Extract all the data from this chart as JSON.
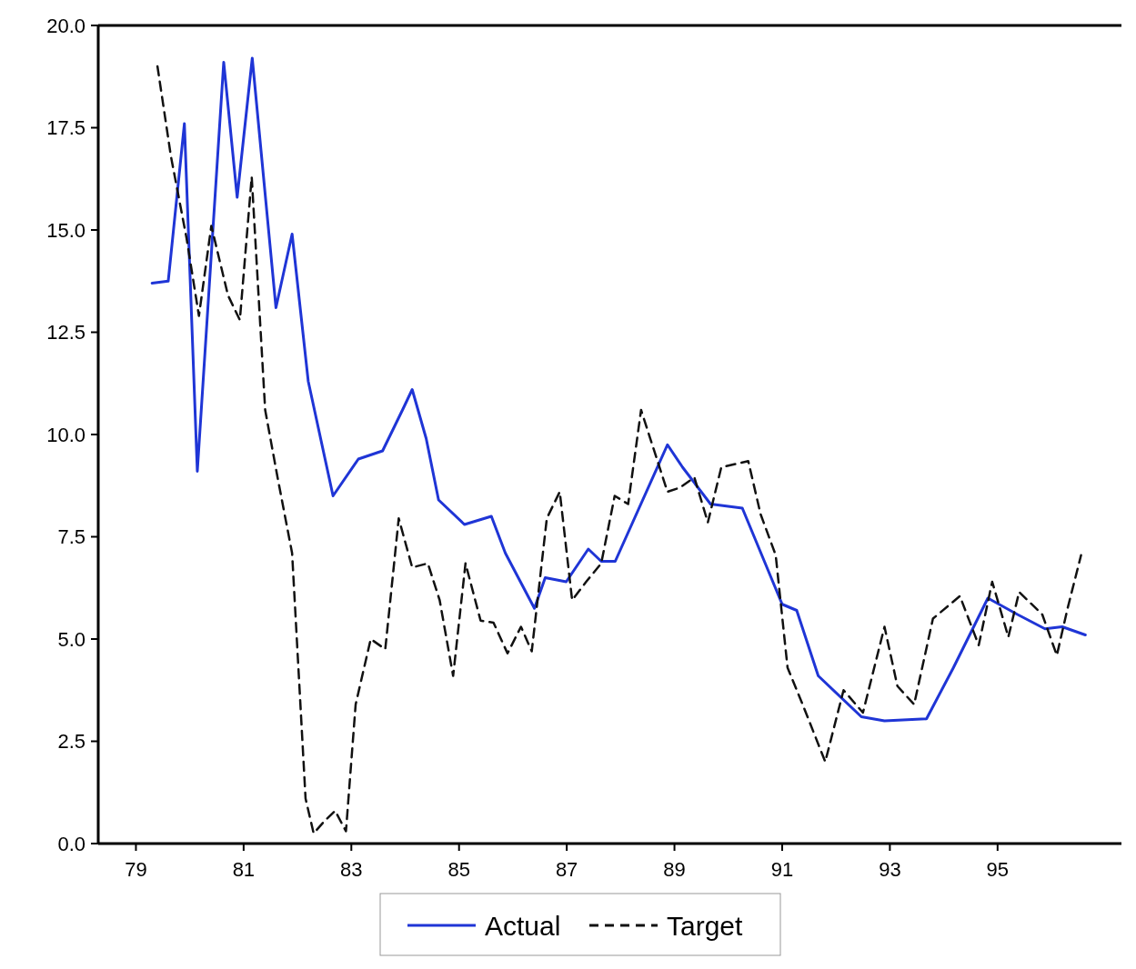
{
  "chart_data": {
    "type": "line",
    "xlim": [
      78.3,
      97.3
    ],
    "xticks": [
      79,
      81,
      83,
      85,
      87,
      89,
      91,
      93,
      95
    ],
    "ylim": [
      0,
      20
    ],
    "yticks": [
      {
        "value": 0,
        "label": "0.0"
      },
      {
        "value": 2.5,
        "label": "2.5"
      },
      {
        "value": 5,
        "label": "5.0"
      },
      {
        "value": 7.5,
        "label": "7.5"
      },
      {
        "value": 10,
        "label": "10.0"
      },
      {
        "value": 12.5,
        "label": "12.5"
      },
      {
        "value": 15,
        "label": "15.0"
      },
      {
        "value": 17.5,
        "label": "17.5"
      },
      {
        "value": 20,
        "label": "20.0"
      }
    ],
    "grid": false,
    "legend": "bottom",
    "marker": "none",
    "series": [
      {
        "name": "Actual",
        "color": "#1f35d6",
        "line_style": "solid",
        "x": [
          79.3,
          79.6,
          79.9,
          80.14,
          80.63,
          80.88,
          81.16,
          81.6,
          81.9,
          82.2,
          82.66,
          83.13,
          83.58,
          83.95,
          84.13,
          84.39,
          84.62,
          85.1,
          85.6,
          85.86,
          86.4,
          86.6,
          86.99,
          87.4,
          87.64,
          87.9,
          88.87,
          89.15,
          89.67,
          90.26,
          91.0,
          91.27,
          91.67,
          92.47,
          92.9,
          93.68,
          94.18,
          94.82,
          95.37,
          95.88,
          96.2,
          96.63
        ],
        "values": [
          13.7,
          13.75,
          17.6,
          9.1,
          19.1,
          15.8,
          19.2,
          13.1,
          14.9,
          11.3,
          8.5,
          9.4,
          9.6,
          10.6,
          11.1,
          9.9,
          8.4,
          7.8,
          8.0,
          7.1,
          5.75,
          6.5,
          6.4,
          7.2,
          6.9,
          6.9,
          9.75,
          9.2,
          8.3,
          8.2,
          5.85,
          5.7,
          4.1,
          3.1,
          3.0,
          3.05,
          4.3,
          6.0,
          5.6,
          5.25,
          5.3,
          5.1
        ]
      },
      {
        "name": "Target",
        "color": "#111111",
        "line_style": "dashed",
        "x": [
          79.4,
          79.65,
          79.94,
          80.17,
          80.4,
          80.71,
          80.93,
          81.15,
          81.4,
          81.63,
          81.9,
          82.15,
          82.3,
          82.5,
          82.7,
          82.9,
          83.08,
          83.36,
          83.63,
          83.88,
          84.13,
          84.42,
          84.64,
          84.89,
          85.12,
          85.4,
          85.64,
          85.9,
          86.15,
          86.35,
          86.63,
          86.87,
          87.1,
          87.36,
          87.64,
          87.89,
          88.14,
          88.38,
          88.6,
          88.87,
          89.1,
          89.37,
          89.62,
          89.87,
          90.37,
          90.6,
          90.88,
          91.1,
          91.38,
          91.8,
          92.14,
          92.5,
          92.9,
          93.14,
          93.45,
          93.8,
          94.3,
          94.65,
          94.9,
          95.2,
          95.4,
          95.83,
          96.1,
          96.3,
          96.55
        ],
        "values": [
          19.0,
          16.8,
          14.8,
          12.9,
          15.1,
          13.4,
          12.8,
          16.3,
          10.6,
          8.95,
          7.1,
          1.1,
          0.25,
          0.55,
          0.8,
          0.3,
          3.4,
          5.0,
          4.75,
          7.95,
          6.75,
          6.85,
          5.95,
          4.1,
          6.85,
          5.45,
          5.4,
          4.65,
          5.3,
          4.7,
          7.95,
          8.6,
          5.95,
          6.4,
          6.85,
          8.5,
          8.3,
          10.6,
          9.7,
          8.6,
          8.7,
          8.95,
          7.85,
          9.2,
          9.35,
          8.05,
          7.05,
          4.3,
          3.4,
          2.0,
          3.75,
          3.2,
          5.3,
          3.85,
          3.4,
          5.5,
          6.05,
          4.85,
          6.4,
          5.05,
          6.15,
          5.6,
          4.6,
          5.75,
          7.05
        ]
      }
    ]
  }
}
